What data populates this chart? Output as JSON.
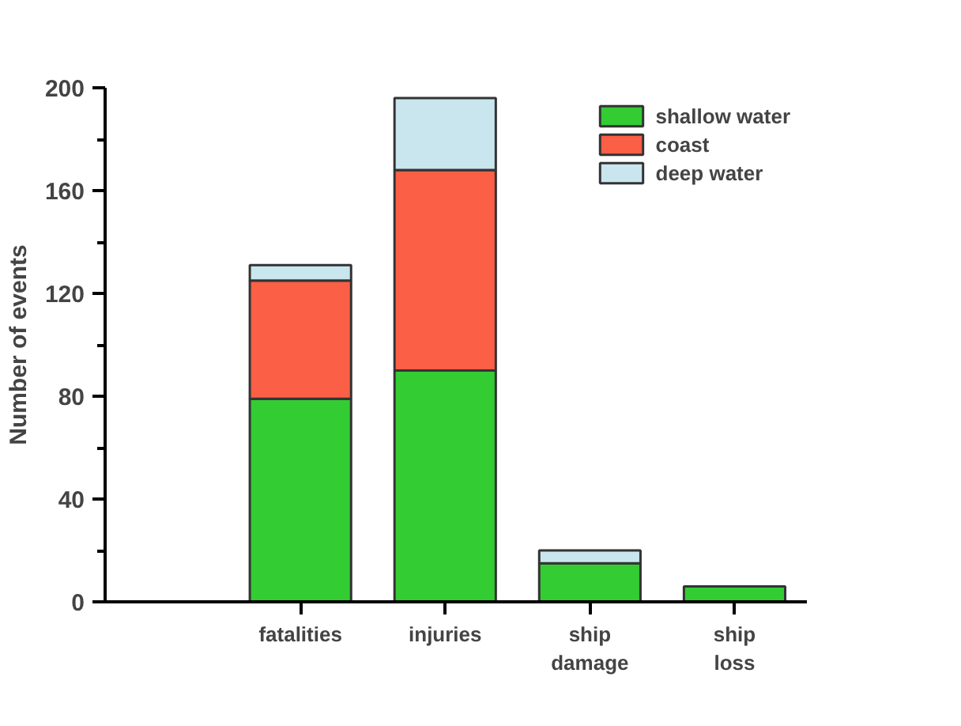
{
  "chart_data": {
    "type": "bar",
    "stacked": true,
    "ylabel": "Number of events",
    "categories": [
      "fatalities",
      "injuries",
      "ship damage",
      "ship loss"
    ],
    "series": [
      {
        "name": "shallow water",
        "color": "#33cc33",
        "values": [
          79,
          90,
          15,
          6
        ]
      },
      {
        "name": "coast",
        "color": "#fb5f45",
        "values": [
          46,
          78,
          null,
          null
        ]
      },
      {
        "name": "deep water",
        "color": "#c9e6ee",
        "values": [
          6,
          28,
          5,
          null
        ]
      }
    ],
    "ylim": [
      0,
      200
    ],
    "yticks": [
      0,
      {
        "value": 20,
        "label": null
      },
      40,
      {
        "value": 60,
        "label": null
      },
      80,
      {
        "value": 100,
        "label": null
      },
      120,
      {
        "value": 140,
        "label": null
      },
      160,
      {
        "value": 180,
        "label": null
      },
      200
    ],
    "grid": false,
    "legend": "top right"
  }
}
